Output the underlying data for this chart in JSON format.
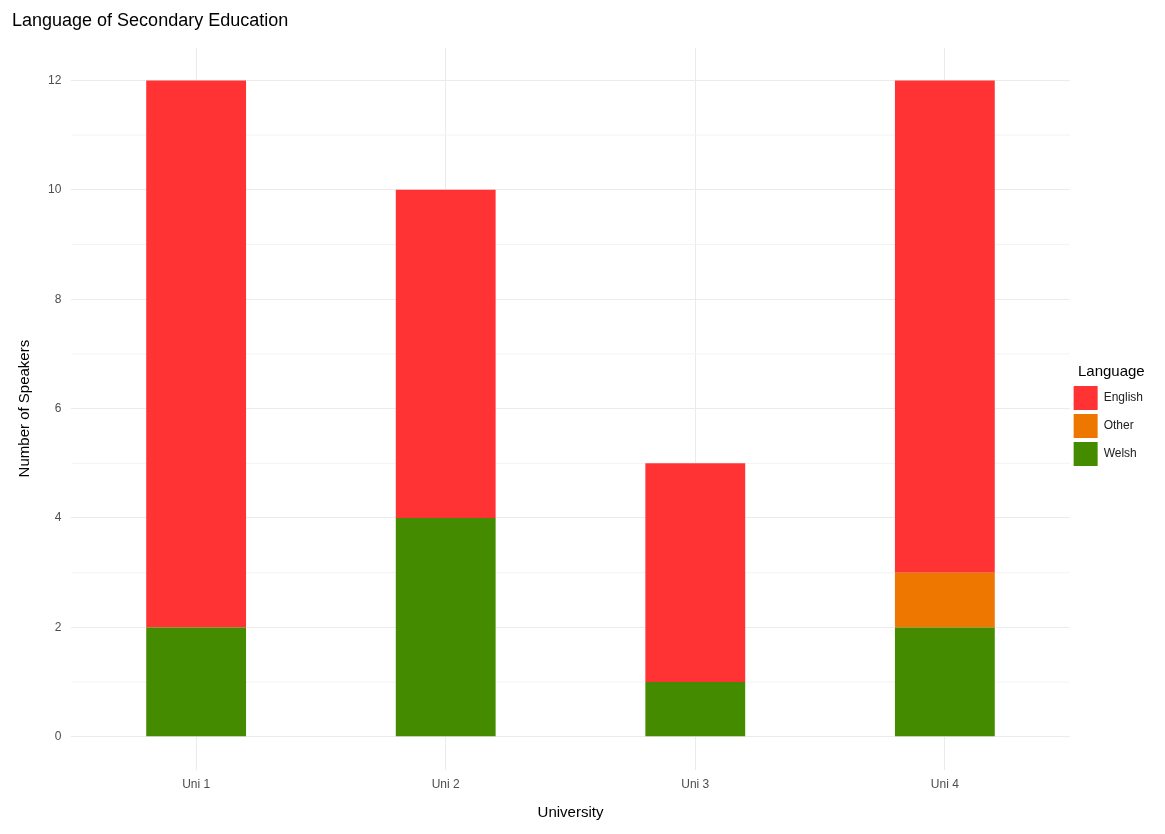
{
  "chart_data": {
    "type": "bar",
    "title": "Language of Secondary Education",
    "xlabel": "University",
    "ylabel": "Number of Speakers",
    "legend_title": "Language",
    "categories": [
      "Uni 1",
      "Uni 2",
      "Uni 3",
      "Uni 4"
    ],
    "series": [
      {
        "name": "Welsh",
        "color": "#458b00",
        "values": [
          2,
          4,
          1,
          2
        ]
      },
      {
        "name": "Other",
        "color": "#ee7700",
        "values": [
          null,
          null,
          null,
          1
        ]
      },
      {
        "name": "English",
        "color": "#ff3333",
        "values": [
          10,
          6,
          4,
          9
        ]
      }
    ],
    "stacked": true,
    "ylim": [
      -0.6,
      12.6
    ],
    "yticks": [
      0,
      2,
      4,
      6,
      8,
      10,
      12
    ],
    "grid": true,
    "legend": "right"
  }
}
